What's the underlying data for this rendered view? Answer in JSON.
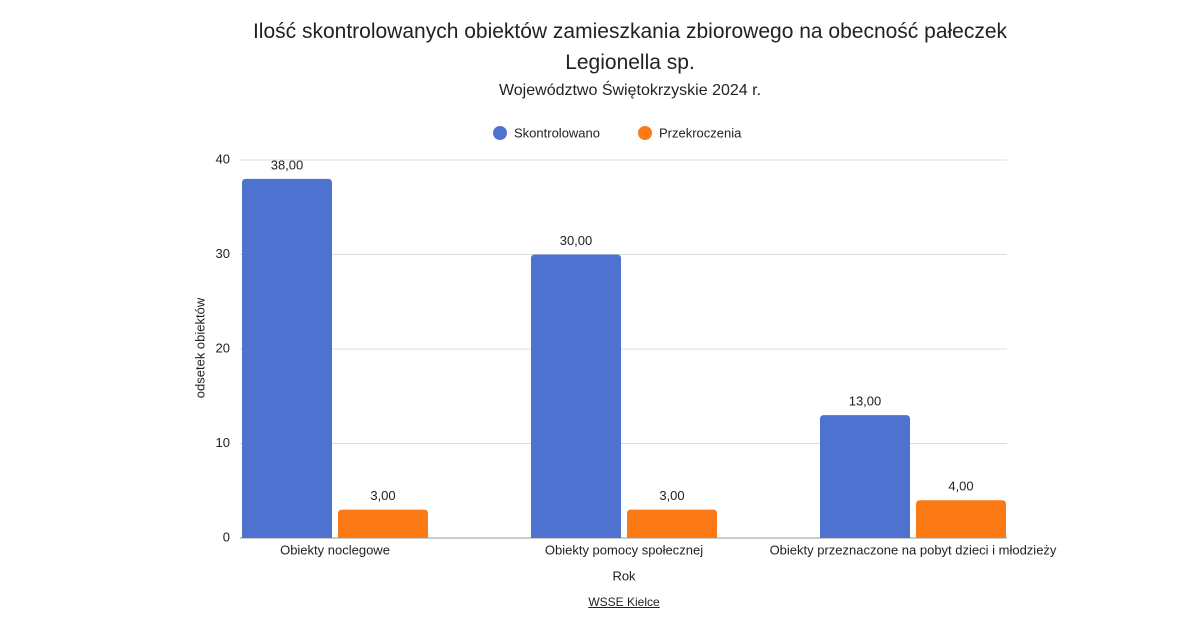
{
  "chart_data": {
    "type": "bar",
    "title": "Ilość skontrolowanych obiektów zamieszkania zbiorowego na obecność pałeczek Legionella sp.",
    "subtitle": "Województwo Świętokrzyskie 2024 r.",
    "x_label": "Rok",
    "y_label": "odsetek obiektów",
    "source": "WSSE Kielce",
    "categories": [
      "Obiekty noclegowe",
      "Obiekty pomocy społecznej",
      "Obiekty przeznaczone na pobyt dzieci i młodzieży"
    ],
    "series": [
      {
        "name": "Skontrolowano",
        "color": "#4e72cf",
        "values": [
          38,
          30,
          13
        ],
        "value_labels": [
          "38,00",
          "30,00",
          "13,00"
        ]
      },
      {
        "name": "Przekroczenia",
        "color": "#fb7a15",
        "values": [
          3,
          3,
          4
        ],
        "value_labels": [
          "3,00",
          "3,00",
          "4,00"
        ]
      }
    ],
    "ylim": [
      0,
      40
    ],
    "yticks": [
      0,
      10,
      20,
      30,
      40
    ],
    "grid": true,
    "legend": "top"
  }
}
